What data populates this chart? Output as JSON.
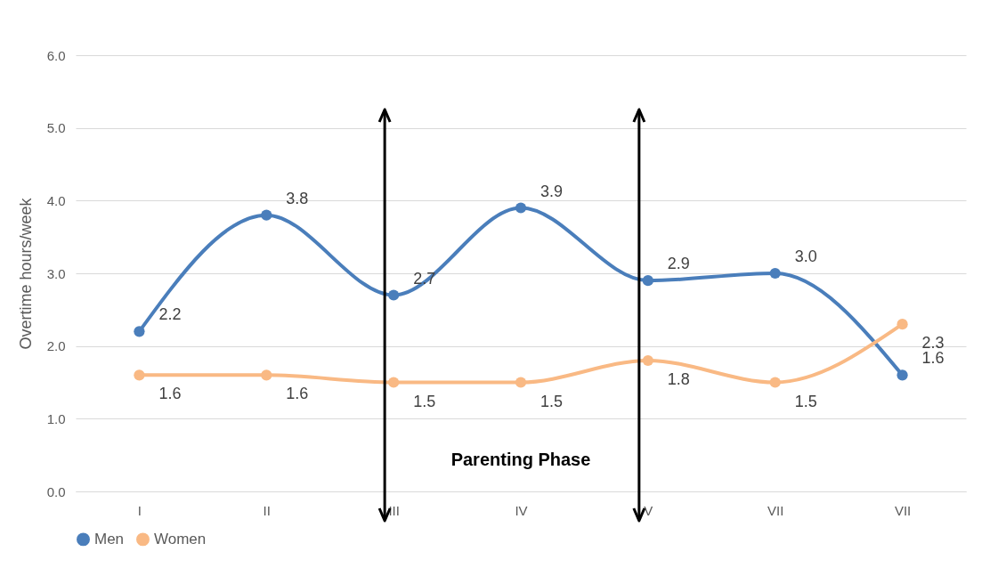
{
  "chart_data": {
    "type": "line",
    "ylabel": "Overtime hours/week",
    "categories": [
      "I",
      "II",
      "III",
      "IV",
      "V",
      "VII",
      "VII"
    ],
    "series": [
      {
        "name": "Men",
        "color": "#4a7ebb",
        "values": [
          2.2,
          3.8,
          2.7,
          3.9,
          2.9,
          3.0,
          1.6
        ],
        "value_labels": [
          "2.2",
          "3.8",
          "2.7",
          "3.9",
          "2.9",
          "3.0",
          "1.6"
        ]
      },
      {
        "name": "Women",
        "color": "#f9b984",
        "values": [
          1.6,
          1.6,
          1.5,
          1.5,
          1.8,
          1.5,
          2.3
        ],
        "value_labels": [
          "1.6",
          "1.6",
          "1.5",
          "1.5",
          "1.8",
          "1.5",
          "2.3"
        ]
      }
    ],
    "ylim": [
      0,
      6
    ],
    "yticks": [
      {
        "value": 0,
        "label": "0.0"
      },
      {
        "value": 1,
        "label": "1.0"
      },
      {
        "value": 2,
        "label": "2.0"
      },
      {
        "value": 3,
        "label": "3.0"
      },
      {
        "value": 4,
        "label": "4.0"
      },
      {
        "value": 5,
        "label": "5.0"
      },
      {
        "value": 6,
        "label": "6.0"
      }
    ],
    "ref_lines": [
      {
        "axis": "x",
        "value": "III",
        "color": "#000000"
      },
      {
        "axis": "x",
        "value": "V",
        "color": "#000000"
      }
    ],
    "annotations": [
      "Parenting Phase"
    ],
    "grid": "y",
    "legend": "bottom",
    "marker": "circle",
    "line_style": "solid"
  }
}
